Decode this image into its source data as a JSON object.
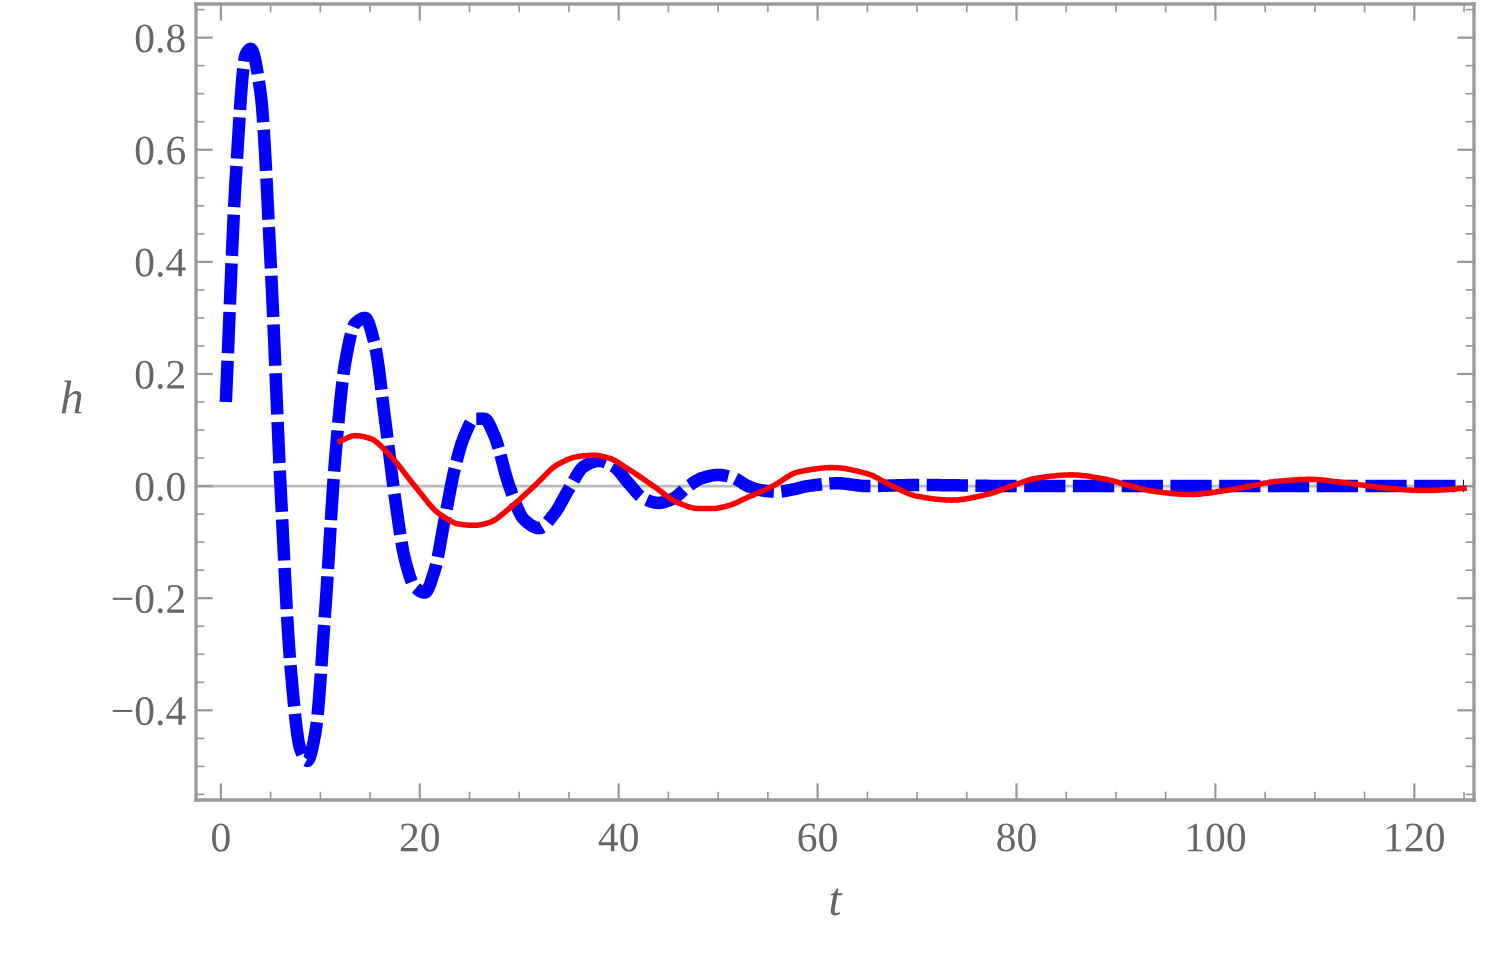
{
  "chart_data": {
    "type": "line",
    "xlabel": "t",
    "ylabel": "h",
    "xlim": [
      -2.5,
      126
    ],
    "ylim": [
      -0.56,
      0.86
    ],
    "xticks": [
      0,
      20,
      40,
      60,
      80,
      100,
      120
    ],
    "yticks": [
      {
        "value": -0.4,
        "label": "−0.4"
      },
      {
        "value": -0.2,
        "label": "−0.2"
      },
      {
        "value": 0,
        "label": "0.0"
      },
      {
        "value": 0.2,
        "label": "0.2"
      },
      {
        "value": 0.4,
        "label": "0.4"
      },
      {
        "value": 0.6,
        "label": "0.6"
      },
      {
        "value": 0.8,
        "label": "0.8"
      }
    ],
    "ref_lines": [
      {
        "axis": "y",
        "value": 0,
        "color": "#bbbbbb"
      }
    ],
    "series": [
      {
        "color": "#0000ff",
        "line_style": "dashed",
        "x": [
          0.5,
          1.5,
          2.5,
          3,
          4,
          5,
          6,
          7,
          8,
          8.7,
          9.5,
          10.5,
          11.5,
          12.5,
          13.5,
          14.5,
          15.5,
          16.5,
          17.5,
          18.5,
          19.5,
          20.5,
          21.5,
          22.5,
          23.5,
          24.5,
          25.5,
          26.5,
          27.5,
          29,
          30.5,
          32,
          33.5,
          35,
          36.5,
          38,
          39.5,
          41,
          42.5,
          44,
          45.5,
          47,
          48.5,
          50,
          51.5,
          53,
          54.5,
          56,
          57.5,
          59,
          62,
          65,
          70,
          80,
          90,
          100,
          110,
          120,
          125
        ],
        "values": [
          0.15,
          0.55,
          0.77,
          0.78,
          0.7,
          0.4,
          0.0,
          -0.32,
          -0.47,
          -0.49,
          -0.44,
          -0.22,
          0.05,
          0.22,
          0.29,
          0.3,
          0.25,
          0.12,
          -0.02,
          -0.13,
          -0.18,
          -0.19,
          -0.15,
          -0.06,
          0.03,
          0.09,
          0.12,
          0.12,
          0.09,
          0.0,
          -0.06,
          -0.075,
          -0.05,
          -0.005,
          0.035,
          0.045,
          0.035,
          0.005,
          -0.022,
          -0.03,
          -0.022,
          0.0,
          0.015,
          0.02,
          0.015,
          0.0,
          -0.008,
          -0.01,
          -0.006,
          0.0,
          0.005,
          0.0,
          0.002,
          0.0,
          0.0,
          0.0,
          0.0,
          0.0,
          0.0
        ]
      },
      {
        "color": "#ff0000",
        "line_style": "solid",
        "x": [
          12,
          13.5,
          15,
          17,
          19.5,
          22,
          24,
          25.5,
          27,
          29,
          31.5,
          34,
          36,
          37.5,
          39,
          41,
          43.5,
          46,
          48,
          49.5,
          51,
          53,
          55.5,
          58,
          61.5,
          65,
          67.5,
          70,
          73.5,
          77,
          79.5,
          82,
          85.5,
          89,
          91.5,
          94,
          97.5,
          101,
          103.5,
          106,
          109.5,
          113,
          115.5,
          118,
          121,
          125
        ],
        "values": [
          0.08,
          0.09,
          0.085,
          0.055,
          0.0,
          -0.05,
          -0.068,
          -0.07,
          -0.065,
          -0.04,
          0.0,
          0.04,
          0.053,
          0.055,
          0.05,
          0.03,
          0.0,
          -0.03,
          -0.04,
          -0.04,
          -0.035,
          -0.02,
          0.0,
          0.025,
          0.033,
          0.022,
          0.0,
          -0.018,
          -0.025,
          -0.015,
          0.0,
          0.014,
          0.02,
          0.012,
          0.0,
          -0.01,
          -0.015,
          -0.008,
          0.0,
          0.008,
          0.012,
          0.006,
          0.0,
          -0.005,
          -0.008,
          -0.004
        ]
      }
    ]
  }
}
